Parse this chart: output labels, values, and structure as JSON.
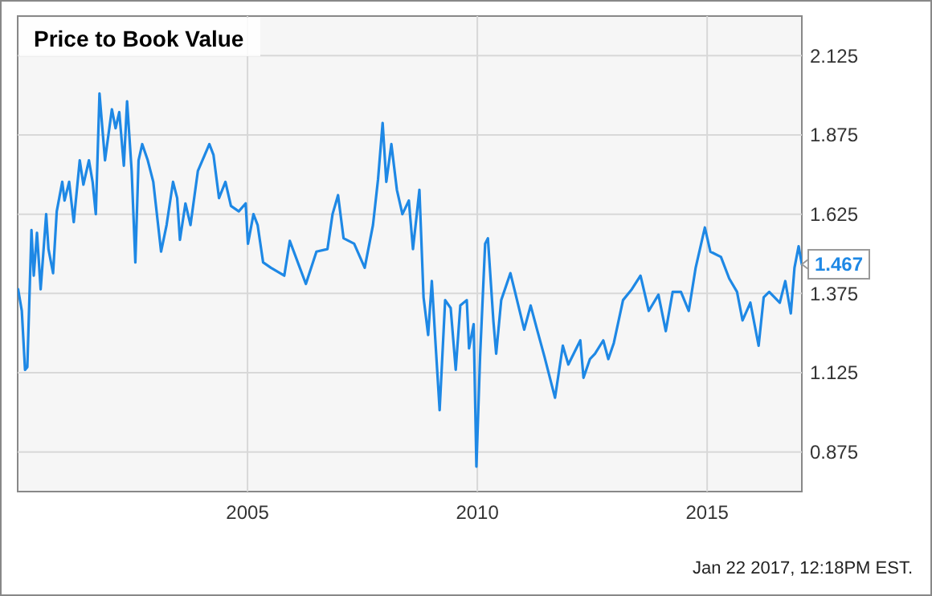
{
  "chart_data": {
    "type": "line",
    "title": "Price to Book Value",
    "xlim": [
      2000,
      2017.06
    ],
    "xticks": [
      2005,
      2010,
      2015
    ],
    "ylim": [
      0.75,
      2.25
    ],
    "yticks": [
      0.875,
      1.125,
      1.375,
      1.625,
      1.875,
      2.125
    ],
    "grid": true,
    "marker": "none",
    "line_style": "solid",
    "annotations": [
      {
        "text": "1.467",
        "x": 2017.06,
        "y": 1.467
      },
      "Jan 22 2017, 12:18PM EST."
    ],
    "series": [
      {
        "color": "#1e88e5",
        "x": [
          2000.01,
          2000.09,
          2000.16,
          2000.21,
          2000.3,
          2000.35,
          2000.42,
          2000.5,
          2000.62,
          2000.67,
          2000.77,
          2000.85,
          2000.97,
          2001.02,
          2001.12,
          2001.22,
          2001.35,
          2001.43,
          2001.55,
          2001.63,
          2001.7,
          2001.78,
          2001.9,
          2002.05,
          2002.13,
          2002.21,
          2002.31,
          2002.38,
          2002.48,
          2002.56,
          2002.63,
          2002.71,
          2002.83,
          2002.95,
          2003.12,
          2003.24,
          2003.38,
          2003.47,
          2003.53,
          2003.65,
          2003.76,
          2003.92,
          2004.17,
          2004.26,
          2004.38,
          2004.52,
          2004.64,
          2004.81,
          2004.96,
          2005.01,
          2005.13,
          2005.22,
          2005.34,
          2005.51,
          2005.8,
          2005.92,
          2006.27,
          2006.5,
          2006.74,
          2006.85,
          2006.97,
          2007.09,
          2007.32,
          2007.55,
          2007.73,
          2007.84,
          2007.94,
          2008.02,
          2008.13,
          2008.25,
          2008.37,
          2008.51,
          2008.6,
          2008.74,
          2008.83,
          2008.93,
          2009.01,
          2009.09,
          2009.18,
          2009.3,
          2009.42,
          2009.53,
          2009.63,
          2009.77,
          2009.82,
          2009.92,
          2009.98,
          2010.06,
          2010.17,
          2010.23,
          2010.35,
          2010.41,
          2010.52,
          2010.72,
          2010.82,
          2011.02,
          2011.16,
          2011.3,
          2011.46,
          2011.69,
          2011.86,
          2011.98,
          2012.24,
          2012.31,
          2012.45,
          2012.56,
          2012.74,
          2012.85,
          2012.97,
          2013.17,
          2013.36,
          2013.55,
          2013.73,
          2013.94,
          2014.1,
          2014.25,
          2014.43,
          2014.6,
          2014.75,
          2014.95,
          2015.07,
          2015.3,
          2015.48,
          2015.65,
          2015.77,
          2015.94,
          2016.12,
          2016.23,
          2016.35,
          2016.58,
          2016.7,
          2016.82,
          2016.9,
          2016.99,
          2017.06
        ],
        "values": [
          1.388,
          1.32,
          1.134,
          1.143,
          1.575,
          1.431,
          1.566,
          1.388,
          1.625,
          1.515,
          1.439,
          1.634,
          1.727,
          1.668,
          1.727,
          1.6,
          1.795,
          1.718,
          1.795,
          1.727,
          1.625,
          2.006,
          1.795,
          1.956,
          1.896,
          1.947,
          1.778,
          1.981,
          1.761,
          1.473,
          1.795,
          1.846,
          1.795,
          1.727,
          1.507,
          1.591,
          1.727,
          1.676,
          1.544,
          1.659,
          1.591,
          1.761,
          1.846,
          1.812,
          1.676,
          1.727,
          1.651,
          1.634,
          1.659,
          1.532,
          1.625,
          1.591,
          1.473,
          1.456,
          1.431,
          1.541,
          1.405,
          1.507,
          1.515,
          1.625,
          1.685,
          1.549,
          1.532,
          1.456,
          1.591,
          1.735,
          1.913,
          1.727,
          1.846,
          1.702,
          1.625,
          1.668,
          1.515,
          1.702,
          1.363,
          1.244,
          1.414,
          1.219,
          1.007,
          1.354,
          1.329,
          1.134,
          1.337,
          1.354,
          1.202,
          1.278,
          0.829,
          1.176,
          1.532,
          1.549,
          1.287,
          1.185,
          1.354,
          1.439,
          1.38,
          1.261,
          1.337,
          1.261,
          1.176,
          1.046,
          1.21,
          1.151,
          1.227,
          1.109,
          1.168,
          1.185,
          1.227,
          1.168,
          1.219,
          1.354,
          1.388,
          1.431,
          1.32,
          1.371,
          1.256,
          1.38,
          1.38,
          1.32,
          1.456,
          1.583,
          1.507,
          1.49,
          1.422,
          1.38,
          1.29,
          1.346,
          1.21,
          1.363,
          1.38,
          1.346,
          1.414,
          1.312,
          1.456,
          1.524,
          1.467
        ]
      }
    ]
  }
}
